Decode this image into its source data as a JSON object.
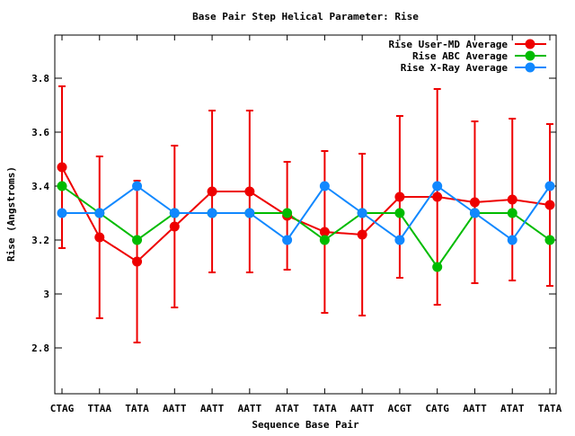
{
  "chart_data": {
    "type": "line",
    "title": "Base Pair Step Helical Parameter: Rise",
    "xlabel": "Sequence Base Pair",
    "ylabel": "Rise (Angstroms)",
    "categories": [
      "CTAG",
      "TTAA",
      "TATA",
      "AATT",
      "AATT",
      "AATT",
      "ATAT",
      "TATA",
      "AATT",
      "ACGT",
      "CATG",
      "AATT",
      "ATAT",
      "TATA"
    ],
    "ylim": [
      2.63,
      3.96
    ],
    "yticks": [
      2.8,
      3,
      3.2,
      3.4,
      3.6,
      3.8
    ],
    "ytick_labels": [
      "2.8",
      "3",
      "3.2",
      "3.4",
      "3.6",
      "3.8"
    ],
    "grid": false,
    "legend_position": "top-right",
    "series": [
      {
        "name": "Rise User-MD Average",
        "color": "#ee0000",
        "values": [
          3.47,
          3.21,
          3.12,
          3.25,
          3.38,
          3.38,
          3.29,
          3.23,
          3.22,
          3.36,
          3.36,
          3.34,
          3.35,
          3.33
        ],
        "error_low": [
          3.17,
          2.91,
          2.82,
          2.95,
          3.08,
          3.08,
          3.09,
          2.93,
          2.92,
          3.06,
          2.96,
          3.04,
          3.05,
          3.03
        ],
        "error_high": [
          3.77,
          3.51,
          3.42,
          3.55,
          3.68,
          3.68,
          3.49,
          3.53,
          3.52,
          3.66,
          3.76,
          3.64,
          3.65,
          3.63
        ]
      },
      {
        "name": "Rise ABC Average",
        "color": "#00bb00",
        "values": [
          3.4,
          3.3,
          3.2,
          3.3,
          3.3,
          3.3,
          3.3,
          3.2,
          3.3,
          3.3,
          3.1,
          3.3,
          3.3,
          3.2
        ]
      },
      {
        "name": "Rise X-Ray Average",
        "color": "#1188ff",
        "values": [
          3.3,
          3.3,
          3.4,
          3.3,
          3.3,
          3.3,
          3.2,
          3.4,
          3.3,
          3.2,
          3.4,
          3.3,
          3.2,
          3.4
        ]
      }
    ]
  }
}
